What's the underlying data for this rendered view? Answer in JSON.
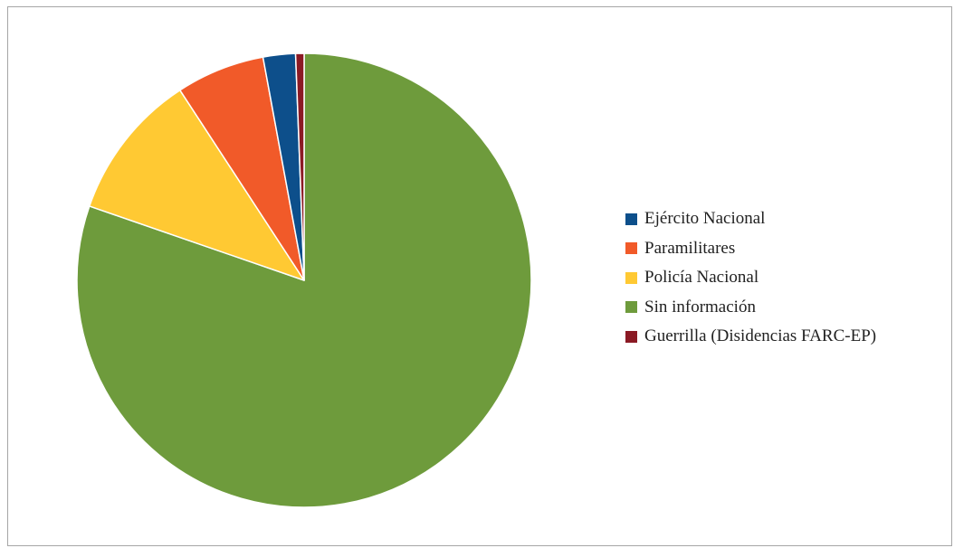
{
  "chart_data": {
    "type": "pie",
    "title": "",
    "legend_position": "right",
    "start_angle_deg": 0,
    "direction": "clockwise",
    "slices": [
      {
        "label": "Sin información",
        "value": 80.3,
        "color": "#6e9b3c"
      },
      {
        "label": "Policía Nacional",
        "value": 10.5,
        "color": "#ffc933"
      },
      {
        "label": "Paramilitares",
        "value": 6.3,
        "color": "#f15a29"
      },
      {
        "label": "Ejército Nacional",
        "value": 2.3,
        "color": "#0d4f8b"
      },
      {
        "label": "Guerrilla (Disidencias FARC-EP)",
        "value": 0.6,
        "color": "#8b1a24"
      }
    ],
    "legend": [
      {
        "label": "Ejército Nacional",
        "color": "#0d4f8b"
      },
      {
        "label": "Paramilitares",
        "color": "#f15a29"
      },
      {
        "label": "Policía Nacional",
        "color": "#ffc933"
      },
      {
        "label": "Sin información",
        "color": "#6e9b3c"
      },
      {
        "label": "Guerrilla (Disidencias FARC-EP)",
        "color": "#8b1a24"
      }
    ]
  }
}
